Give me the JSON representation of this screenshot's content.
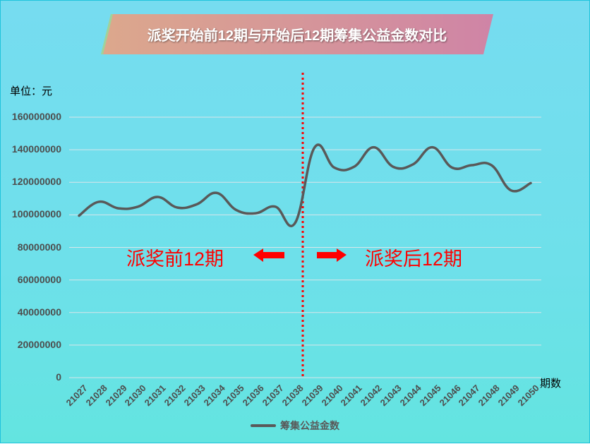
{
  "chart_data": {
    "type": "line",
    "title": "派奖开始前12期与开始后12期筹集公益金数对比",
    "xlabel": "期数",
    "ylabel": "单位：元",
    "ylim": [
      0,
      160000000
    ],
    "yticks": [
      "0",
      "20000000",
      "40000000",
      "60000000",
      "80000000",
      "100000000",
      "120000000",
      "140000000",
      "160000000"
    ],
    "grid": true,
    "legend_position": "bottom",
    "categories": [
      "21027",
      "21028",
      "21029",
      "21030",
      "21031",
      "21032",
      "21033",
      "21034",
      "21035",
      "21036",
      "21037",
      "21038",
      "21039",
      "21040",
      "21041",
      "21042",
      "21043",
      "21044",
      "21045",
      "21046",
      "21047",
      "21048",
      "21049",
      "21050"
    ],
    "series": [
      {
        "name": "筹集公益金数",
        "color": "#595959",
        "values": [
          99500000,
          108000000,
          104000000,
          105000000,
          111000000,
          104500000,
          106500000,
          113500000,
          103000000,
          101000000,
          105000000,
          95000000,
          141500000,
          129000000,
          129500000,
          141500000,
          129500000,
          131000000,
          141500000,
          129000000,
          130500000,
          130500000,
          115000000,
          119500000
        ]
      }
    ],
    "annotations": [
      {
        "text": "派奖前12期",
        "color": "#ff0000",
        "arrow": "left"
      },
      {
        "text": "派奖后12期",
        "color": "#ff0000",
        "arrow": "right"
      },
      {
        "type": "vertical-dotted-line",
        "between": [
          "21038",
          "21039"
        ],
        "color": "#ff0000"
      }
    ]
  },
  "title_gradient": {
    "start": "#dca88c",
    "end": "#cf84a6"
  }
}
